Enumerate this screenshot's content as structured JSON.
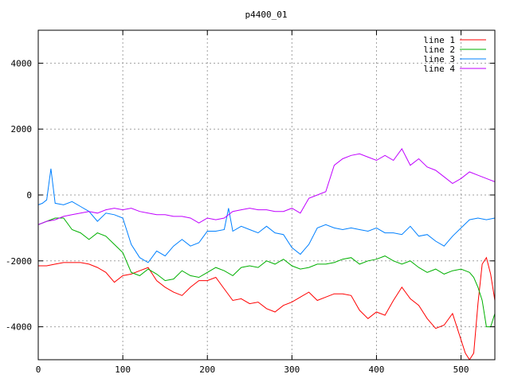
{
  "chart_data": {
    "type": "line",
    "title": "p4400_01",
    "xlabel": "",
    "ylabel": "",
    "xlim": [
      0,
      540
    ],
    "ylim": [
      -5000,
      5000
    ],
    "x_ticks": [
      0,
      100,
      200,
      300,
      400,
      500
    ],
    "y_ticks": [
      -4000,
      -2000,
      0,
      2000,
      4000
    ],
    "grid": true,
    "legend_position": "top-right",
    "series": [
      {
        "name": "line 1",
        "color": "#ff0000",
        "x": [
          0,
          10,
          20,
          30,
          40,
          50,
          60,
          70,
          80,
          90,
          100,
          110,
          120,
          130,
          140,
          150,
          160,
          170,
          180,
          190,
          200,
          210,
          220,
          230,
          240,
          250,
          260,
          270,
          280,
          290,
          300,
          310,
          320,
          330,
          340,
          350,
          360,
          370,
          380,
          390,
          400,
          410,
          420,
          430,
          440,
          450,
          460,
          470,
          480,
          490,
          500,
          505,
          510,
          515,
          520,
          525,
          530,
          535,
          540
        ],
        "values": [
          -2150,
          -2150,
          -2100,
          -2050,
          -2050,
          -2050,
          -2100,
          -2200,
          -2350,
          -2650,
          -2450,
          -2400,
          -2300,
          -2200,
          -2600,
          -2800,
          -2950,
          -3050,
          -2800,
          -2600,
          -2600,
          -2500,
          -2850,
          -3200,
          -3150,
          -3300,
          -3250,
          -3450,
          -3550,
          -3350,
          -3250,
          -3100,
          -2950,
          -3200,
          -3100,
          -3000,
          -3000,
          -3050,
          -3500,
          -3750,
          -3550,
          -3650,
          -3200,
          -2800,
          -3150,
          -3350,
          -3750,
          -4050,
          -3950,
          -3600,
          -4400,
          -4800,
          -5000,
          -4800,
          -3300,
          -2100,
          -1900,
          -2400,
          -3200
        ]
      },
      {
        "name": "line 2",
        "color": "#00b000",
        "x": [
          0,
          10,
          20,
          30,
          40,
          50,
          60,
          70,
          80,
          90,
          100,
          110,
          120,
          130,
          140,
          150,
          160,
          170,
          180,
          190,
          200,
          210,
          220,
          230,
          240,
          250,
          260,
          270,
          280,
          290,
          300,
          310,
          320,
          330,
          340,
          350,
          360,
          370,
          380,
          390,
          400,
          410,
          420,
          430,
          440,
          450,
          460,
          470,
          480,
          490,
          500,
          505,
          510,
          515,
          520,
          525,
          530,
          535,
          540
        ],
        "values": [
          -900,
          -800,
          -700,
          -700,
          -1050,
          -1150,
          -1350,
          -1150,
          -1250,
          -1500,
          -1750,
          -2350,
          -2450,
          -2250,
          -2400,
          -2600,
          -2550,
          -2300,
          -2450,
          -2500,
          -2350,
          -2200,
          -2300,
          -2450,
          -2200,
          -2150,
          -2200,
          -2000,
          -2100,
          -1950,
          -2150,
          -2250,
          -2200,
          -2100,
          -2100,
          -2050,
          -1950,
          -1900,
          -2100,
          -2000,
          -1950,
          -1850,
          -2000,
          -2100,
          -2000,
          -2200,
          -2350,
          -2250,
          -2400,
          -2300,
          -2250,
          -2300,
          -2350,
          -2500,
          -2800,
          -3200,
          -4000,
          -4000,
          -3600
        ]
      },
      {
        "name": "line 3",
        "color": "#0080ff",
        "x": [
          0,
          5,
          10,
          15,
          20,
          30,
          40,
          50,
          60,
          70,
          80,
          90,
          100,
          110,
          120,
          130,
          140,
          150,
          160,
          170,
          180,
          190,
          200,
          210,
          220,
          225,
          230,
          240,
          250,
          260,
          270,
          280,
          290,
          300,
          310,
          320,
          330,
          340,
          350,
          360,
          370,
          380,
          390,
          400,
          410,
          420,
          430,
          440,
          450,
          460,
          470,
          480,
          490,
          500,
          510,
          520,
          530,
          540
        ],
        "values": [
          -300,
          -250,
          -150,
          800,
          -250,
          -300,
          -200,
          -350,
          -500,
          -800,
          -550,
          -600,
          -700,
          -1500,
          -1900,
          -2050,
          -1700,
          -1850,
          -1550,
          -1350,
          -1550,
          -1450,
          -1100,
          -1100,
          -1050,
          -400,
          -1100,
          -950,
          -1050,
          -1150,
          -950,
          -1150,
          -1200,
          -1600,
          -1800,
          -1500,
          -1000,
          -900,
          -1000,
          -1050,
          -1000,
          -1050,
          -1100,
          -1000,
          -1150,
          -1150,
          -1200,
          -950,
          -1250,
          -1200,
          -1400,
          -1550,
          -1250,
          -1000,
          -750,
          -700,
          -750,
          -700
        ]
      },
      {
        "name": "line 4",
        "color": "#c000ff",
        "x": [
          0,
          10,
          20,
          30,
          40,
          50,
          60,
          70,
          80,
          90,
          100,
          110,
          120,
          130,
          140,
          150,
          160,
          170,
          180,
          190,
          200,
          210,
          220,
          230,
          240,
          250,
          260,
          270,
          280,
          290,
          300,
          310,
          320,
          330,
          340,
          350,
          360,
          370,
          380,
          390,
          400,
          410,
          420,
          430,
          440,
          450,
          460,
          470,
          480,
          490,
          500,
          510,
          520,
          530,
          540
        ],
        "values": [
          -900,
          -800,
          -750,
          -650,
          -600,
          -550,
          -500,
          -550,
          -450,
          -400,
          -450,
          -400,
          -500,
          -550,
          -600,
          -600,
          -650,
          -650,
          -700,
          -850,
          -700,
          -750,
          -700,
          -500,
          -450,
          -400,
          -450,
          -450,
          -500,
          -500,
          -400,
          -550,
          -100,
          0,
          100,
          900,
          1100,
          1200,
          1250,
          1150,
          1050,
          1200,
          1050,
          1400,
          900,
          1100,
          850,
          750,
          550,
          350,
          500,
          700,
          600,
          500,
          400
        ]
      }
    ]
  }
}
